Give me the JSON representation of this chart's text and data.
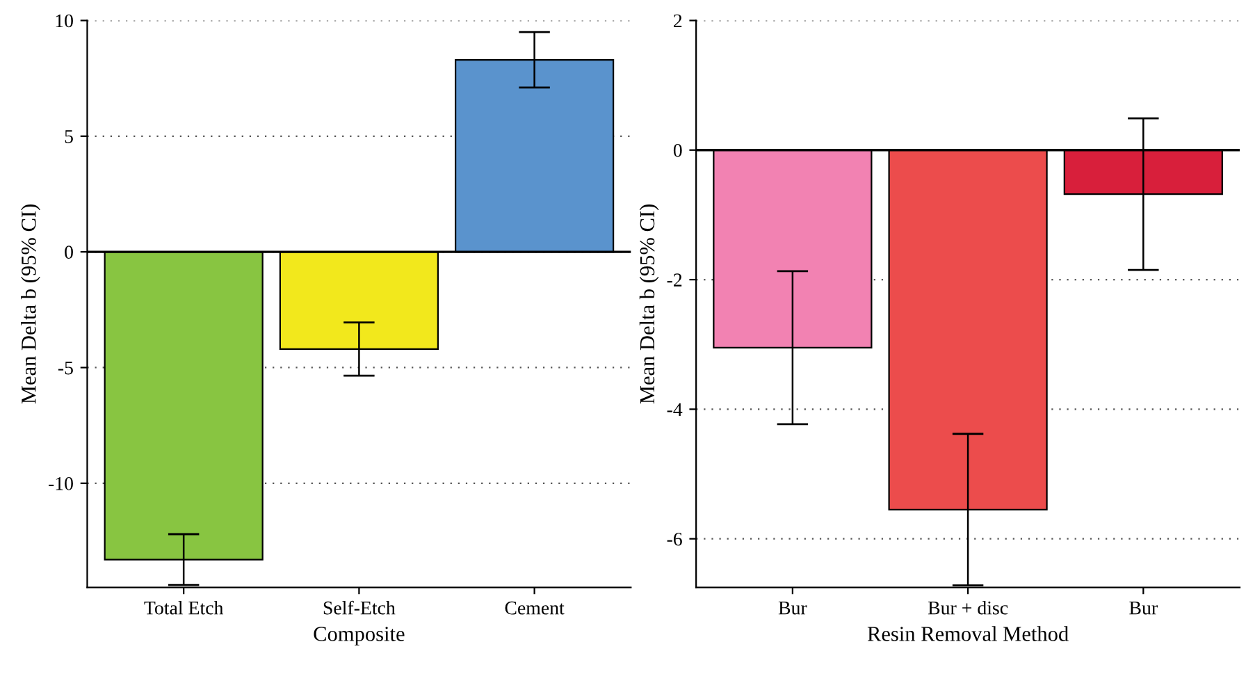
{
  "chart_data": [
    {
      "type": "bar",
      "xlabel": "Composite",
      "ylabel": "Mean Delta b (95% CI)",
      "categories": [
        "Total Etch",
        "Self-Etch",
        "Cement"
      ],
      "values": [
        -13.3,
        -4.2,
        8.3
      ],
      "errors": [
        1.1,
        1.15,
        1.2
      ],
      "colors": [
        "#88c541",
        "#f2e81c",
        "#5a93cd"
      ],
      "ylim": [
        -14.5,
        10
      ],
      "yticks": [
        {
          "value": -10,
          "label": "-10"
        },
        {
          "value": -5,
          "label": "-5"
        },
        0,
        5,
        10
      ],
      "grid": "y",
      "ref_lines": [
        {
          "axis": "y",
          "value": 0,
          "color": "#000000"
        }
      ]
    },
    {
      "type": "bar",
      "xlabel": "Resin Removal Method",
      "ylabel": "Mean Delta b (95% CI)",
      "categories": [
        "Bur",
        "Bur + disc",
        "Bur"
      ],
      "values": [
        -3.05,
        -5.55,
        -0.68
      ],
      "errors": [
        1.18,
        1.17,
        1.17
      ],
      "colors": [
        "#f282b2",
        "#ec4c4c",
        "#d81f3b"
      ],
      "ylim": [
        -6.75,
        2
      ],
      "yticks": [
        {
          "value": -6,
          "label": "-6"
        },
        {
          "value": -4,
          "label": "-4"
        },
        {
          "value": -2,
          "label": "-2"
        },
        0,
        2
      ],
      "grid": "y",
      "ref_lines": [
        {
          "axis": "y",
          "value": 0,
          "color": "#000000"
        }
      ]
    }
  ]
}
